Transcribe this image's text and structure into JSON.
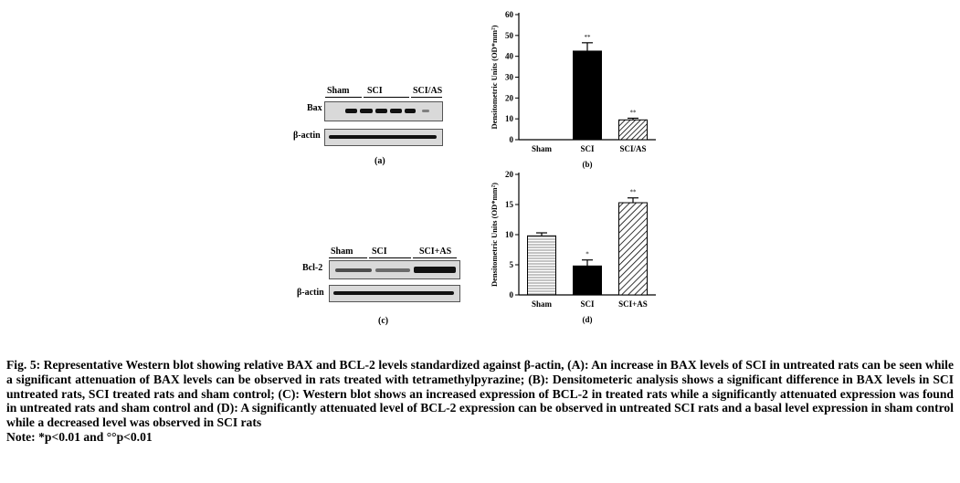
{
  "panels": {
    "a": {
      "group_labels": [
        "Sham",
        "SCI",
        "SCI/AS"
      ],
      "row_labels": [
        "Bax",
        "β-actin"
      ],
      "panel_label": "(a)"
    },
    "c": {
      "group_labels": [
        "Sham",
        "SCI",
        "SCI+AS"
      ],
      "row_labels": [
        "Bcl-2",
        "β-actin"
      ],
      "panel_label": "(c)"
    }
  },
  "chart_data": [
    {
      "type": "bar",
      "panel_label": "(b)",
      "categories": [
        "Sham",
        "SCI",
        "SCI/AS"
      ],
      "values": [
        0,
        42.5,
        9.5
      ],
      "errors": [
        0,
        4,
        0.8
      ],
      "significance": [
        "",
        "**",
        "**"
      ],
      "ylabel": "Densitometric Units (OD*mm²)",
      "ylim": [
        0,
        60
      ],
      "yticks": [
        "0",
        "10",
        "20",
        "30",
        "40",
        "50",
        "60"
      ],
      "bar_styles": [
        "none",
        "solid-black",
        "diagonal-hatch"
      ]
    },
    {
      "type": "bar",
      "panel_label": "(d)",
      "categories": [
        "Sham",
        "SCI",
        "SCI+AS"
      ],
      "values": [
        9.8,
        4.8,
        15.3
      ],
      "errors": [
        0.5,
        1.0,
        0.8
      ],
      "significance": [
        "",
        "*",
        "**"
      ],
      "ylabel": "Densitometric Units (OD*mm²)",
      "ylim": [
        0,
        20
      ],
      "yticks": [
        "0",
        "5",
        "10",
        "15",
        "20"
      ],
      "bar_styles": [
        "horizontal-lines",
        "solid-black",
        "diagonal-hatch"
      ]
    }
  ],
  "caption": {
    "text": "Fig. 5: Representative Western blot showing relative BAX and BCL-2 levels standardized against β-actin, (A): An increase in BAX levels of SCI in untreated rats can be seen while a significant attenuation of BAX levels can be observed in rats treated with tetramethylpyrazine; (B): Densitometeric analysis shows a significant difference in BAX levels in SCI untreated rats, SCI treated rats and sham control; (C): Western blot shows an increased expression of BCL-2 in treated rats while a significantly attenuated expression was found in untreated rats and sham control and (D): A significantly attenuated level of BCL-2 expression can be observed in untreated SCI rats and a basal level expression in sham control while a decreased level was observed in SCI rats",
    "note": "Note: *p<0.01 and °°p<0.01"
  }
}
